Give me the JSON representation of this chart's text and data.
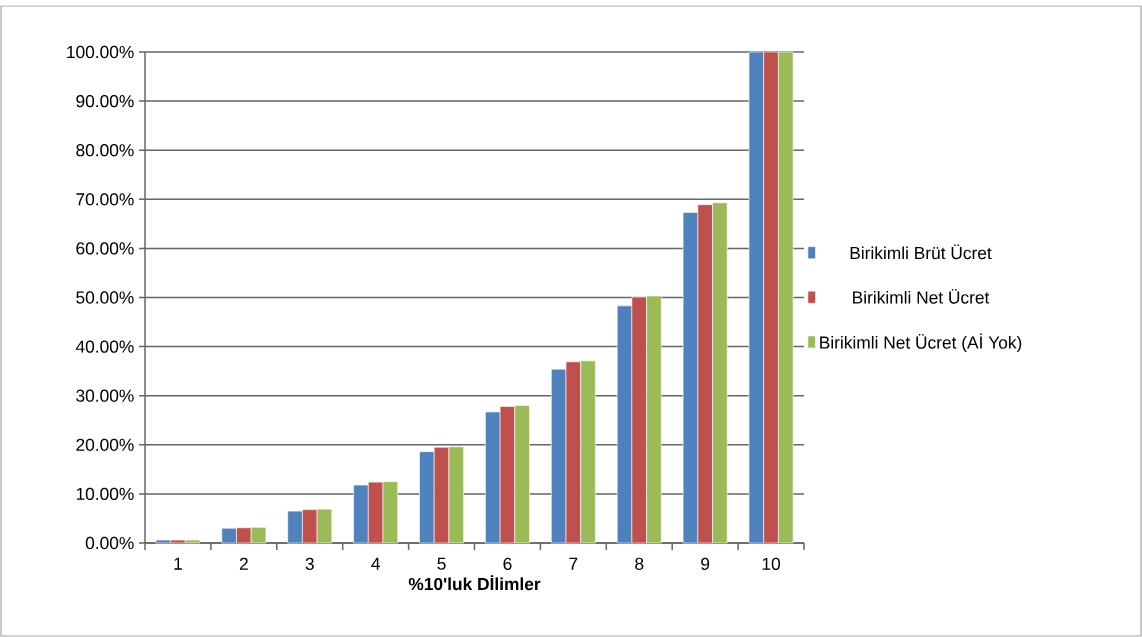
{
  "chart_data": {
    "type": "bar",
    "xlabel": "%10'luk Dİlimler",
    "categories": [
      "1",
      "2",
      "3",
      "4",
      "5",
      "6",
      "7",
      "8",
      "9",
      "10"
    ],
    "series": [
      {
        "name": "Birikimli Brüt Ücret",
        "color": "#4f81bd",
        "values": [
          0.6,
          3.0,
          6.5,
          11.8,
          18.6,
          26.7,
          35.4,
          48.3,
          67.3,
          100
        ]
      },
      {
        "name": "Birikimli Net Ücret",
        "color": "#c0504d",
        "values": [
          0.6,
          3.1,
          6.8,
          12.4,
          19.5,
          27.8,
          36.9,
          50.1,
          68.9,
          100
        ]
      },
      {
        "name": "Birikimli Net Ücret (Aİ Yok)",
        "color": "#9bbb59",
        "values": [
          0.6,
          3.2,
          6.9,
          12.5,
          19.6,
          28.0,
          37.1,
          50.3,
          69.3,
          100
        ]
      }
    ],
    "ylim": [
      0,
      100
    ],
    "yticks": [
      {
        "value": 0,
        "label": "0.00%"
      },
      {
        "value": 10,
        "label": "10.00%"
      },
      {
        "value": 20,
        "label": "20.00%"
      },
      {
        "value": 30,
        "label": "30.00%"
      },
      {
        "value": 40,
        "label": "40.00%"
      },
      {
        "value": 50,
        "label": "50.00%"
      },
      {
        "value": 60,
        "label": "60.00%"
      },
      {
        "value": 70,
        "label": "70.00%"
      },
      {
        "value": 80,
        "label": "80.00%"
      },
      {
        "value": 90,
        "label": "90.00%"
      },
      {
        "value": 100,
        "label": "100.00%"
      }
    ],
    "grid": "y",
    "legend": "right"
  }
}
